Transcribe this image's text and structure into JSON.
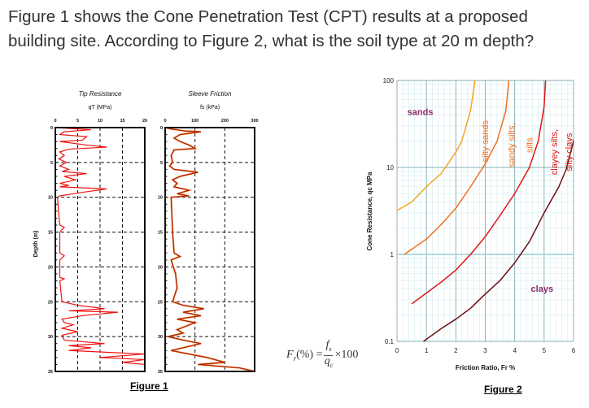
{
  "question": {
    "text": "Figure 1 shows the Cone Penetration Test (CPT) results at a proposed building site. According to Figure 2, what is the soil type at 20 m depth?"
  },
  "figure1": {
    "caption": "Figure 1",
    "depth_label": "Depth (m)",
    "formula": {
      "lhs": "F",
      "lhs_sub": "r",
      "lhs_rest": "(%) =",
      "numerator": "f",
      "numerator_sub": "s",
      "denominator": "q",
      "denominator_sub": "c",
      "multiplier": "×100"
    }
  },
  "figure2": {
    "caption": "Figure 2"
  },
  "chart_data": [
    {
      "type": "line",
      "title": "Tip Resistance",
      "xlabel": "qT (MPa)",
      "ylabel": "Depth (m)",
      "xlim": [
        0,
        20
      ],
      "ylim": [
        35,
        0
      ],
      "x_ticks": [
        "0",
        "5",
        "10",
        "15",
        "20"
      ],
      "y_ticks": [
        "0",
        "5",
        "10",
        "15",
        "20",
        "25",
        "30",
        "35"
      ],
      "grid": true,
      "line_color": "#ee1111",
      "series": [
        {
          "points_depth_value": [
            [
              0,
              0
            ],
            [
              0.3,
              8
            ],
            [
              0.6,
              2
            ],
            [
              1,
              1
            ],
            [
              1.3,
              7
            ],
            [
              1.8,
              6
            ],
            [
              2,
              1
            ],
            [
              2.5,
              7
            ],
            [
              2.8,
              11.5
            ],
            [
              3.1,
              3
            ],
            [
              3.5,
              1
            ],
            [
              4,
              2
            ],
            [
              4.5,
              0.8
            ],
            [
              5,
              2.5
            ],
            [
              5.5,
              1
            ],
            [
              6,
              3
            ],
            [
              6.3,
              1.5
            ],
            [
              6.6,
              7
            ],
            [
              7,
              2
            ],
            [
              7.5,
              4.5
            ],
            [
              8,
              1
            ],
            [
              8.3,
              3
            ],
            [
              8.5,
              1
            ],
            [
              8.8,
              11.5
            ],
            [
              9.3,
              6
            ],
            [
              9.6,
              3
            ],
            [
              9.8,
              1
            ],
            [
              10,
              0.5
            ],
            [
              12,
              0.7
            ],
            [
              14,
              1
            ],
            [
              14.3,
              2
            ],
            [
              15,
              1
            ],
            [
              18,
              1
            ],
            [
              18.4,
              2
            ],
            [
              19,
              1
            ],
            [
              21.5,
              1
            ],
            [
              21.7,
              2
            ],
            [
              22,
              1
            ],
            [
              25,
              1.5
            ],
            [
              25.5,
              5
            ],
            [
              26,
              11
            ],
            [
              26.3,
              3
            ],
            [
              26.5,
              14
            ],
            [
              27,
              6
            ],
            [
              27.5,
              1.5
            ],
            [
              28,
              2
            ],
            [
              28.3,
              4
            ],
            [
              28.8,
              1.5
            ],
            [
              29.3,
              5
            ],
            [
              29.8,
              1.5
            ],
            [
              30.5,
              2
            ],
            [
              31,
              11
            ],
            [
              31.3,
              3
            ],
            [
              31.6,
              8
            ],
            [
              32,
              3
            ],
            [
              32.5,
              20
            ],
            [
              33,
              10
            ],
            [
              33.3,
              20
            ],
            [
              33.7,
              15
            ],
            [
              34,
              20
            ],
            [
              35,
              20
            ]
          ]
        }
      ]
    },
    {
      "type": "line",
      "title": "Sleeve Friction",
      "xlabel": "fs (kPa)",
      "ylabel": "",
      "xlim": [
        0,
        300
      ],
      "ylim": [
        35,
        0
      ],
      "x_ticks": [
        "0",
        "100",
        "200",
        "300"
      ],
      "y_ticks": [
        "0",
        "5",
        "10",
        "15",
        "20",
        "25",
        "30",
        "35"
      ],
      "grid": true,
      "line_color": "#b02000",
      "series": [
        {
          "points_depth_value": [
            [
              0,
              0
            ],
            [
              0.2,
              20
            ],
            [
              0.5,
              70
            ],
            [
              0.6,
              120
            ],
            [
              1,
              50
            ],
            [
              1.5,
              30
            ],
            [
              2,
              50
            ],
            [
              2.5,
              80
            ],
            [
              3,
              100
            ],
            [
              3.2,
              30
            ],
            [
              4,
              20
            ],
            [
              5,
              25
            ],
            [
              5.5,
              15
            ],
            [
              6,
              30
            ],
            [
              6.4,
              110
            ],
            [
              7,
              50
            ],
            [
              7.5,
              25
            ],
            [
              8,
              40
            ],
            [
              8.5,
              30
            ],
            [
              9,
              80
            ],
            [
              9.5,
              40
            ],
            [
              9.8,
              80
            ],
            [
              10,
              20
            ],
            [
              15,
              25
            ],
            [
              18,
              30
            ],
            [
              18.5,
              50
            ],
            [
              19,
              20
            ],
            [
              21,
              35
            ],
            [
              23,
              40
            ],
            [
              25,
              25
            ],
            [
              25.5,
              60
            ],
            [
              26,
              130
            ],
            [
              26.5,
              60
            ],
            [
              27,
              120
            ],
            [
              27.5,
              40
            ],
            [
              28,
              100
            ],
            [
              29,
              40
            ],
            [
              29.5,
              60
            ],
            [
              30,
              10
            ],
            [
              30.5,
              60
            ],
            [
              31,
              120
            ],
            [
              32,
              20
            ],
            [
              33,
              140
            ],
            [
              33.7,
              200
            ],
            [
              34,
              110
            ],
            [
              34.5,
              250
            ],
            [
              35,
              300
            ]
          ]
        }
      ]
    },
    {
      "type": "line",
      "title": "",
      "xlabel": "Friction Ratio, Fr %",
      "ylabel": "Cone Resistance, qc MPa",
      "xlim": [
        0,
        6
      ],
      "ylim": [
        0.1,
        100
      ],
      "y_scale": "log",
      "x_ticks": [
        "0",
        "1",
        "2",
        "3",
        "4",
        "5",
        "6"
      ],
      "y_ticks": [
        "0.1",
        "1",
        "10",
        "100"
      ],
      "grid": true,
      "series": [
        {
          "color": "#f5a623",
          "points": [
            [
              0,
              3.2
            ],
            [
              0.5,
              4
            ],
            [
              1,
              6
            ],
            [
              1.5,
              8.5
            ],
            [
              2,
              15
            ],
            [
              2.2,
              20
            ],
            [
              2.5,
              45
            ],
            [
              2.65,
              100
            ]
          ]
        },
        {
          "color": "#f07020",
          "points": [
            [
              0.25,
              1
            ],
            [
              1,
              1.5
            ],
            [
              1.5,
              2.2
            ],
            [
              2,
              3.4
            ],
            [
              2.5,
              6
            ],
            [
              3,
              11
            ],
            [
              3.4,
              20
            ],
            [
              3.7,
              45
            ],
            [
              3.8,
              100
            ]
          ]
        },
        {
          "color": "#e01818",
          "points": [
            [
              0.5,
              0.27
            ],
            [
              1,
              0.36
            ],
            [
              1.5,
              0.48
            ],
            [
              2,
              0.66
            ],
            [
              2.5,
              1
            ],
            [
              3,
              1.6
            ],
            [
              3.5,
              2.8
            ],
            [
              4,
              5
            ],
            [
              4.5,
              10
            ],
            [
              4.8,
              20
            ],
            [
              5,
              50
            ],
            [
              5.05,
              100
            ]
          ]
        },
        {
          "color": "#6e0f14",
          "points": [
            [
              0.9,
              0.1
            ],
            [
              1.5,
              0.14
            ],
            [
              2,
              0.18
            ],
            [
              2.5,
              0.24
            ],
            [
              3,
              0.35
            ],
            [
              3.5,
              0.5
            ],
            [
              4,
              0.8
            ],
            [
              4.5,
              1.4
            ],
            [
              5,
              3
            ],
            [
              5.5,
              6
            ],
            [
              5.75,
              9.5
            ],
            [
              6,
              20
            ]
          ]
        }
      ],
      "region_labels": [
        {
          "text": "sands",
          "x": 0.35,
          "y": 40,
          "color": "#8b2a6a",
          "rotated": false
        },
        {
          "text": "silty sands",
          "x": 3.1,
          "y": 20,
          "color": "#f07020",
          "rotated": true
        },
        {
          "text": "sandy silts,",
          "x": 4.0,
          "y": 18,
          "color": "#f07020",
          "rotated": true
        },
        {
          "text": "silts",
          "x": 4.6,
          "y": 18,
          "color": "#f07020",
          "rotated": true
        },
        {
          "text": "clayey silts,",
          "x": 5.45,
          "y": 15,
          "color": "#e01818",
          "rotated": true
        },
        {
          "text": "silty clays",
          "x": 5.95,
          "y": 15,
          "color": "#e01818",
          "rotated": true
        },
        {
          "text": "clays",
          "x": 4.55,
          "y": 0.37,
          "color": "#8b2a6a",
          "rotated": false
        }
      ]
    }
  ]
}
